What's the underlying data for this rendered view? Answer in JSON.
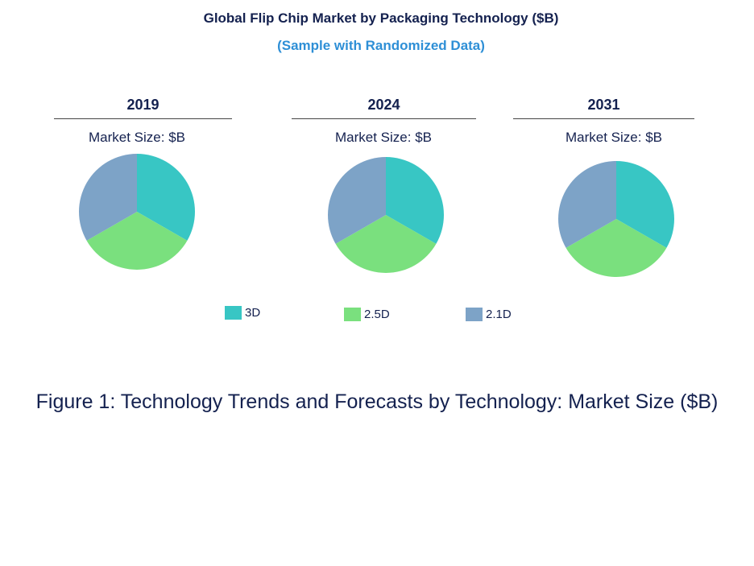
{
  "chart_data": {
    "type": "pie",
    "title": "Global Flip Chip Market by Packaging Technology ($B)",
    "subtitle": "(Sample with Randomized Data)",
    "caption": "Figure 1: Technology Trends and Forecasts by Technology: Market Size ($B)",
    "legend": {
      "placement": "bottom",
      "entries": [
        "3D",
        "2.5D",
        "2.1D"
      ]
    },
    "colors": {
      "3D": "#38c6c4",
      "2.5D": "#7ae07e",
      "2.1D": "#7da3c7"
    },
    "pies": [
      {
        "year": "2019",
        "label": "Market Size: $B",
        "slices": [
          {
            "name": "3D",
            "value": 33.3
          },
          {
            "name": "2.5D",
            "value": 33.4
          },
          {
            "name": "2.1D",
            "value": 33.3
          }
        ]
      },
      {
        "year": "2024",
        "label": "Market Size: $B",
        "slices": [
          {
            "name": "3D",
            "value": 33.3
          },
          {
            "name": "2.5D",
            "value": 33.4
          },
          {
            "name": "2.1D",
            "value": 33.3
          }
        ]
      },
      {
        "year": "2031",
        "label": "Market Size: $B",
        "slices": [
          {
            "name": "3D",
            "value": 33.3
          },
          {
            "name": "2.5D",
            "value": 33.4
          },
          {
            "name": "2.1D",
            "value": 33.3
          }
        ]
      }
    ]
  }
}
